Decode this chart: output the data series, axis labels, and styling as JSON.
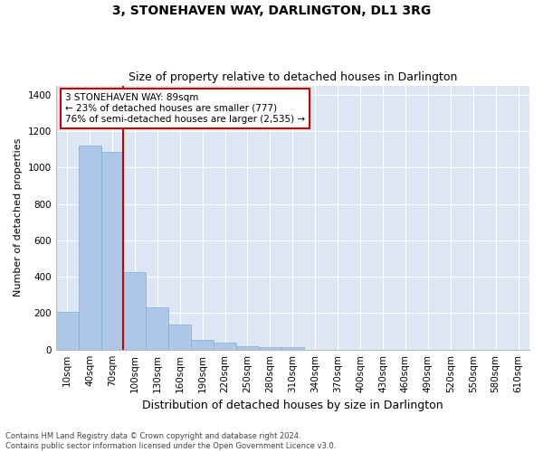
{
  "title": "3, STONEHAVEN WAY, DARLINGTON, DL1 3RG",
  "subtitle": "Size of property relative to detached houses in Darlington",
  "xlabel": "Distribution of detached houses by size in Darlington",
  "ylabel": "Number of detached properties",
  "categories": [
    "10sqm",
    "40sqm",
    "70sqm",
    "100sqm",
    "130sqm",
    "160sqm",
    "190sqm",
    "220sqm",
    "250sqm",
    "280sqm",
    "310sqm",
    "340sqm",
    "370sqm",
    "400sqm",
    "430sqm",
    "460sqm",
    "490sqm",
    "520sqm",
    "550sqm",
    "580sqm",
    "610sqm"
  ],
  "bar_values": [
    205,
    1120,
    1085,
    425,
    230,
    140,
    55,
    38,
    20,
    12,
    12,
    0,
    0,
    0,
    0,
    0,
    0,
    0,
    0,
    0,
    0
  ],
  "bar_color": "#aec6e8",
  "bar_edge_color": "#7bafd4",
  "vline_x_index": 2.5,
  "annotation_text": "3 STONEHAVEN WAY: 89sqm\n← 23% of detached houses are smaller (777)\n76% of semi-detached houses are larger (2,535) →",
  "annotation_box_color": "#ffffff",
  "annotation_box_edge_color": "#cc0000",
  "vline_color": "#cc0000",
  "ylim": [
    0,
    1450
  ],
  "yticks": [
    0,
    200,
    400,
    600,
    800,
    1000,
    1200,
    1400
  ],
  "plot_bg_color": "#dce6f5",
  "grid_color": "#ffffff",
  "footer_line1": "Contains HM Land Registry data © Crown copyright and database right 2024.",
  "footer_line2": "Contains public sector information licensed under the Open Government Licence v3.0.",
  "title_fontsize": 10,
  "subtitle_fontsize": 9,
  "ylabel_fontsize": 8,
  "xlabel_fontsize": 9,
  "tick_fontsize": 7.5,
  "annot_fontsize": 7.5
}
